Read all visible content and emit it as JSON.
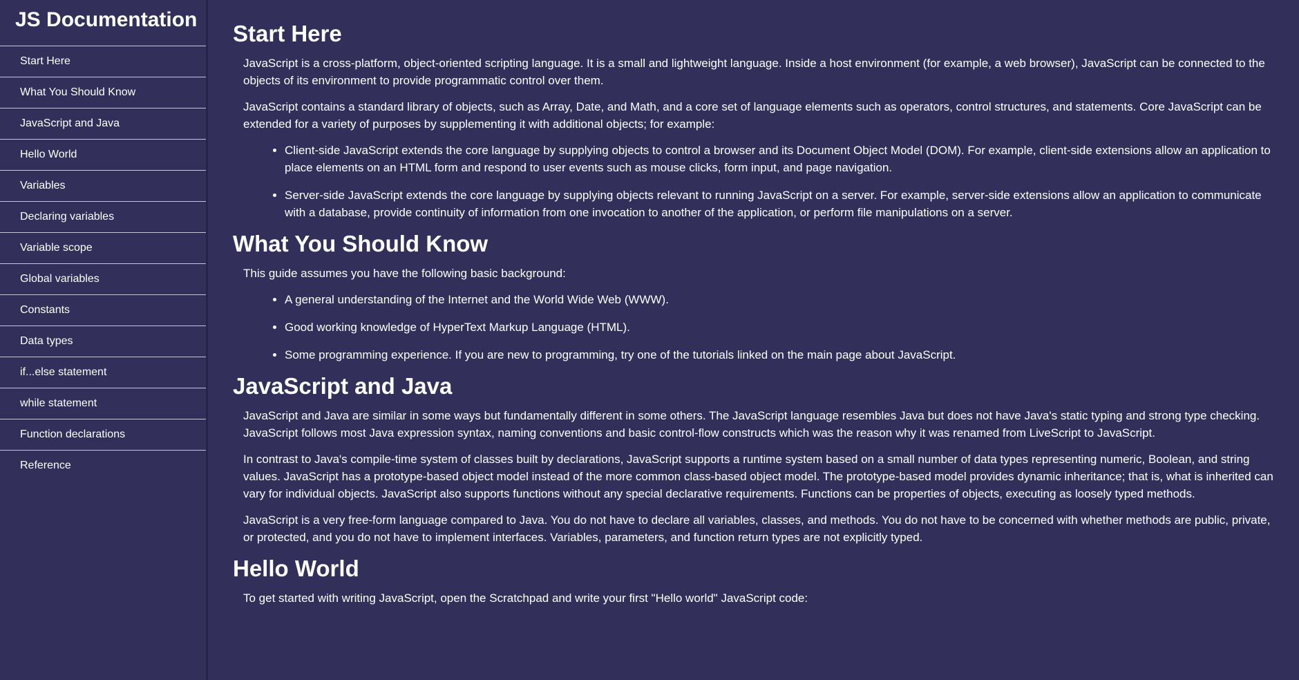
{
  "navbar": {
    "title": "JS Documentation",
    "items": [
      {
        "label": "Start Here"
      },
      {
        "label": "What You Should Know"
      },
      {
        "label": "JavaScript and Java"
      },
      {
        "label": "Hello World"
      },
      {
        "label": "Variables"
      },
      {
        "label": "Declaring variables"
      },
      {
        "label": "Variable scope"
      },
      {
        "label": "Global variables"
      },
      {
        "label": "Constants"
      },
      {
        "label": "Data types"
      },
      {
        "label": "if...else statement"
      },
      {
        "label": "while statement"
      },
      {
        "label": "Function declarations"
      },
      {
        "label": "Reference"
      }
    ]
  },
  "sections": {
    "start_here": {
      "title": "Start Here",
      "p1": "JavaScript is a cross-platform, object-oriented scripting language. It is a small and lightweight language. Inside a host environment (for example, a web browser), JavaScript can be connected to the objects of its environment to provide programmatic control over them.",
      "p2": "JavaScript contains a standard library of objects, such as Array, Date, and Math, and a core set of language elements such as operators, control structures, and statements. Core JavaScript can be extended for a variety of purposes by supplementing it with additional objects; for example:",
      "list": [
        "Client-side JavaScript extends the core language by supplying objects to control a browser and its Document Object Model (DOM). For example, client-side extensions allow an application to place elements on an HTML form and respond to user events such as mouse clicks, form input, and page navigation.",
        "Server-side JavaScript extends the core language by supplying objects relevant to running JavaScript on a server. For example, server-side extensions allow an application to communicate with a database, provide continuity of information from one invocation to another of the application, or perform file manipulations on a server."
      ]
    },
    "what_you_should_know": {
      "title": "What You Should Know",
      "p1": "This guide assumes you have the following basic background:",
      "list": [
        "A general understanding of the Internet and the World Wide Web (WWW).",
        "Good working knowledge of HyperText Markup Language (HTML).",
        "Some programming experience. If you are new to programming, try one of the tutorials linked on the main page about JavaScript."
      ]
    },
    "javascript_and_java": {
      "title": "JavaScript and Java",
      "p1": "JavaScript and Java are similar in some ways but fundamentally different in some others. The JavaScript language resembles Java but does not have Java's static typing and strong type checking. JavaScript follows most Java expression syntax, naming conventions and basic control-flow constructs which was the reason why it was renamed from LiveScript to JavaScript.",
      "p2": "In contrast to Java's compile-time system of classes built by declarations, JavaScript supports a runtime system based on a small number of data types representing numeric, Boolean, and string values. JavaScript has a prototype-based object model instead of the more common class-based object model. The prototype-based model provides dynamic inheritance; that is, what is inherited can vary for individual objects. JavaScript also supports functions without any special declarative requirements. Functions can be properties of objects, executing as loosely typed methods.",
      "p3": "JavaScript is a very free-form language compared to Java. You do not have to declare all variables, classes, and methods. You do not have to be concerned with whether methods are public, private, or protected, and you do not have to implement interfaces. Variables, parameters, and function return types are not explicitly typed."
    },
    "hello_world": {
      "title": "Hello World",
      "p1": "To get started with writing JavaScript, open the Scratchpad and write your first \"Hello world\" JavaScript code:"
    }
  }
}
